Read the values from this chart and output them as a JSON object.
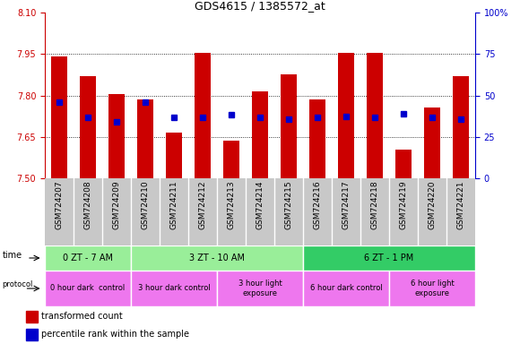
{
  "title": "GDS4615 / 1385572_at",
  "samples": [
    "GSM724207",
    "GSM724208",
    "GSM724209",
    "GSM724210",
    "GSM724211",
    "GSM724212",
    "GSM724213",
    "GSM724214",
    "GSM724215",
    "GSM724216",
    "GSM724217",
    "GSM724218",
    "GSM724219",
    "GSM724220",
    "GSM724221"
  ],
  "red_values": [
    7.94,
    7.87,
    7.805,
    7.785,
    7.665,
    7.955,
    7.635,
    7.815,
    7.875,
    7.785,
    7.955,
    7.955,
    7.605,
    7.755,
    7.87
  ],
  "blue_values": [
    7.775,
    7.72,
    7.705,
    7.775,
    7.72,
    7.72,
    7.73,
    7.72,
    7.715,
    7.72,
    7.725,
    7.72,
    7.735,
    7.72,
    7.715
  ],
  "ymin": 7.5,
  "ymax": 8.1,
  "yticks_left": [
    7.5,
    7.65,
    7.8,
    7.95,
    8.1
  ],
  "yticks_right_labels": [
    "0",
    "25",
    "50",
    "75",
    "100%"
  ],
  "bar_color": "#CC0000",
  "dot_color": "#0000CC",
  "background_xticklabels": "#C8C8C8",
  "time_groups": [
    {
      "label": "0 ZT - 7 AM",
      "start": 0,
      "end": 3,
      "color": "#99EE99"
    },
    {
      "label": "3 ZT - 10 AM",
      "start": 3,
      "end": 9,
      "color": "#99EE99"
    },
    {
      "label": "6 ZT - 1 PM",
      "start": 9,
      "end": 15,
      "color": "#33CC66"
    }
  ],
  "protocol_groups": [
    {
      "label": "0 hour dark  control",
      "start": 0,
      "end": 3,
      "color": "#EE77EE"
    },
    {
      "label": "3 hour dark control",
      "start": 3,
      "end": 6,
      "color": "#EE77EE"
    },
    {
      "label": "3 hour light\nexposure",
      "start": 6,
      "end": 9,
      "color": "#EE77EE"
    },
    {
      "label": "6 hour dark control",
      "start": 9,
      "end": 12,
      "color": "#EE77EE"
    },
    {
      "label": "6 hour light\nexposure",
      "start": 12,
      "end": 15,
      "color": "#EE77EE"
    }
  ],
  "left_axis_color": "#CC0000",
  "right_axis_color": "#0000CC"
}
